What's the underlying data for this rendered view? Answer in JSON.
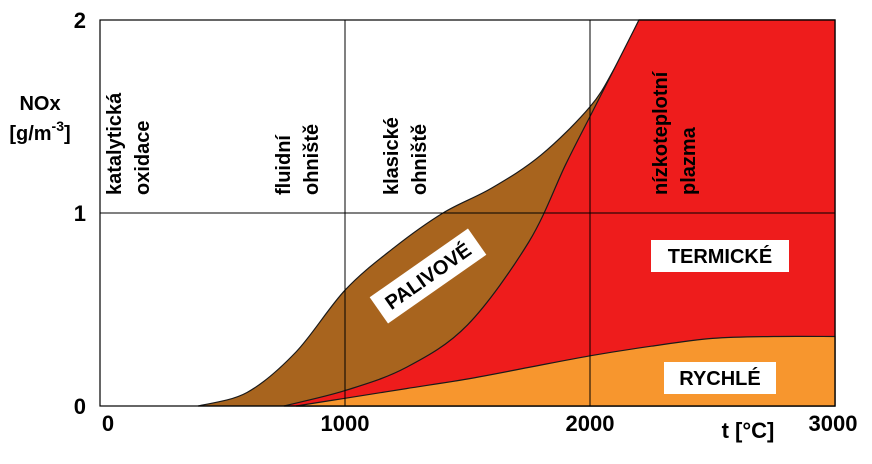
{
  "chart_data": {
    "type": "area",
    "xlabel": "t [°C]",
    "ylabel": {
      "line1": "NOx",
      "line2": "[g/m-3]"
    },
    "xlim": [
      0,
      3000
    ],
    "ylim": [
      0,
      2
    ],
    "x_ticks": [
      "0",
      "1000",
      "2000",
      "3000"
    ],
    "y_ticks": [
      "0",
      "1",
      "2"
    ],
    "grid": true,
    "series": [
      {
        "name": "RYCHLÉ",
        "color": "#f7962e",
        "x": [
          800,
          1000,
          1250,
          1500,
          1750,
          2000,
          2250,
          2500,
          2750,
          3000
        ],
        "y": [
          0.0,
          0.04,
          0.09,
          0.14,
          0.2,
          0.26,
          0.31,
          0.35,
          0.36,
          0.36
        ]
      },
      {
        "name": "TERMICKÉ",
        "color": "#ee1c1c",
        "x": [
          750,
          1000,
          1250,
          1500,
          1750,
          1900,
          2000,
          2100,
          2200
        ],
        "y": [
          0.0,
          0.08,
          0.2,
          0.42,
          0.85,
          1.25,
          1.5,
          1.75,
          2.0
        ]
      },
      {
        "name": "PALIVOVÉ",
        "color": "#a8641e",
        "x": [
          400,
          600,
          800,
          1000,
          1200,
          1400,
          1600,
          1800,
          2000,
          2100,
          2200
        ],
        "y": [
          0.0,
          0.07,
          0.28,
          0.6,
          0.82,
          1.0,
          1.13,
          1.3,
          1.55,
          1.75,
          2.0
        ]
      }
    ],
    "region_labels": [
      {
        "text": "katalytická",
        "text2": "oxidace"
      },
      {
        "text": "fluidní",
        "text2": "ohniště"
      },
      {
        "text": "klasické",
        "text2": "ohniště"
      },
      {
        "text": "nízkoteplotní",
        "text2": "plazma"
      }
    ],
    "boxed_labels": {
      "palivove": "PALIVOVÉ",
      "termicke": "TERMICKÉ",
      "rychle": "RYCHLÉ"
    }
  }
}
